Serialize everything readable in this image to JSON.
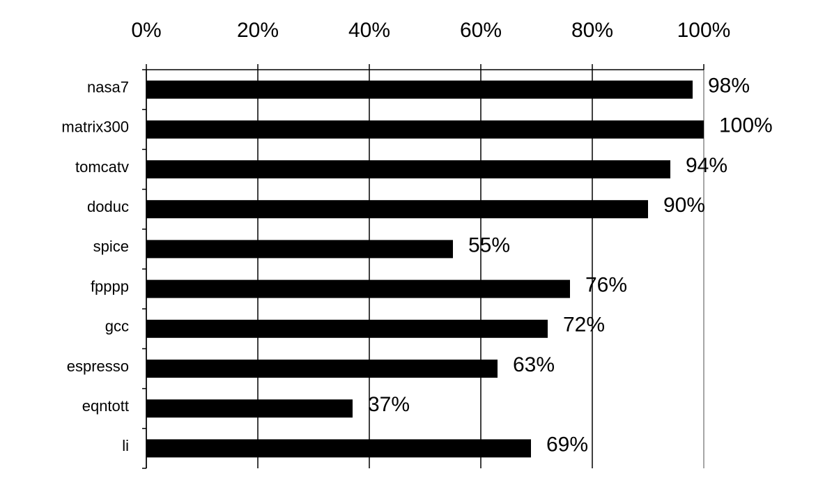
{
  "chart_data": {
    "type": "bar",
    "orientation": "horizontal",
    "categories": [
      "nasa7",
      "matrix300",
      "tomcatv",
      "doduc",
      "spice",
      "fpppp",
      "gcc",
      "espresso",
      "eqntott",
      "li"
    ],
    "values": [
      98,
      100,
      94,
      90,
      55,
      76,
      72,
      63,
      37,
      69
    ],
    "value_labels": [
      "98%",
      "100%",
      "94%",
      "90%",
      "55%",
      "76%",
      "72%",
      "63%",
      "37%",
      "69%"
    ],
    "color": "#000000",
    "xlim": [
      0,
      100
    ],
    "xticks": [
      {
        "value": 0,
        "label": "0%"
      },
      {
        "value": 20,
        "label": "20%"
      },
      {
        "value": 40,
        "label": "40%"
      },
      {
        "value": 60,
        "label": "60%"
      },
      {
        "value": 80,
        "label": "80%"
      },
      {
        "value": 100,
        "label": "100%"
      }
    ],
    "grid": true
  }
}
